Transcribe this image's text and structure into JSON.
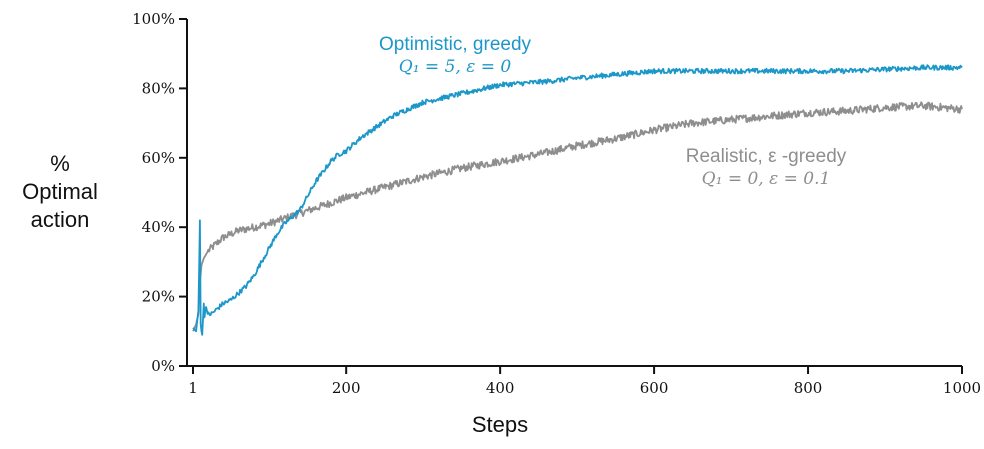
{
  "colors": {
    "optimistic": "#1c97c9",
    "realistic": "#8e8e90",
    "axis": "#111111"
  },
  "labels": {
    "y_title_1": "%",
    "y_title_2": "Optimal",
    "y_title_3": "action",
    "x_title": "Steps"
  },
  "annotations": {
    "optimistic_name": "Optimistic, greedy",
    "optimistic_params": "Q₁ = 5,  ε = 0",
    "realistic_name": "Realistic, ε -greedy",
    "realistic_params": "Q₁ = 0,  ε = 0.1"
  },
  "chart_data": {
    "type": "line",
    "title": "",
    "xlabel": "Steps",
    "ylabel": "% Optimal action",
    "xlim": [
      1,
      1000
    ],
    "ylim": [
      0,
      100
    ],
    "xticks": [
      1,
      200,
      400,
      600,
      800,
      1000
    ],
    "yticks": [
      0,
      20,
      40,
      60,
      80,
      100
    ],
    "ytick_labels": [
      "0%",
      "20%",
      "40%",
      "60%",
      "80%",
      "100%"
    ],
    "grid": false,
    "series": [
      {
        "name": "Optimistic, greedy",
        "color": "#1c97c9",
        "x": [
          1,
          5,
          8,
          10,
          11,
          12,
          13,
          15,
          16,
          17,
          18,
          20,
          25,
          30,
          40,
          50,
          60,
          70,
          80,
          90,
          100,
          110,
          120,
          130,
          140,
          150,
          160,
          170,
          180,
          190,
          200,
          220,
          240,
          260,
          280,
          300,
          320,
          340,
          360,
          380,
          400,
          430,
          460,
          500,
          550,
          600,
          650,
          700,
          750,
          800,
          850,
          900,
          950,
          1000
        ],
        "y": [
          11,
          10,
          16,
          42,
          12,
          10,
          9,
          18,
          14,
          16,
          17,
          15,
          15,
          16,
          18,
          19,
          21,
          23,
          26,
          30,
          34,
          38,
          41,
          43,
          45,
          49,
          53,
          56,
          59,
          61,
          62,
          66,
          69,
          72,
          74,
          76,
          77,
          78,
          79,
          80,
          81,
          81.5,
          82,
          83,
          84,
          85,
          85,
          85,
          85,
          85,
          85,
          85.5,
          86,
          86
        ]
      },
      {
        "name": "Realistic, ε -greedy",
        "color": "#8e8e90",
        "x": [
          1,
          3,
          5,
          8,
          10,
          12,
          15,
          20,
          30,
          40,
          50,
          60,
          80,
          100,
          120,
          140,
          160,
          180,
          200,
          250,
          300,
          350,
          400,
          450,
          500,
          550,
          600,
          650,
          700,
          750,
          800,
          850,
          900,
          950,
          1000
        ],
        "y": [
          10,
          11,
          12,
          15,
          24,
          29,
          31,
          33,
          35,
          37,
          38,
          39,
          40,
          41,
          42.5,
          44,
          45.5,
          47,
          48.5,
          51.5,
          54.5,
          57,
          59,
          61,
          63.5,
          65.5,
          68,
          70,
          71,
          72,
          73,
          73.5,
          74.5,
          75,
          74
        ]
      }
    ]
  }
}
